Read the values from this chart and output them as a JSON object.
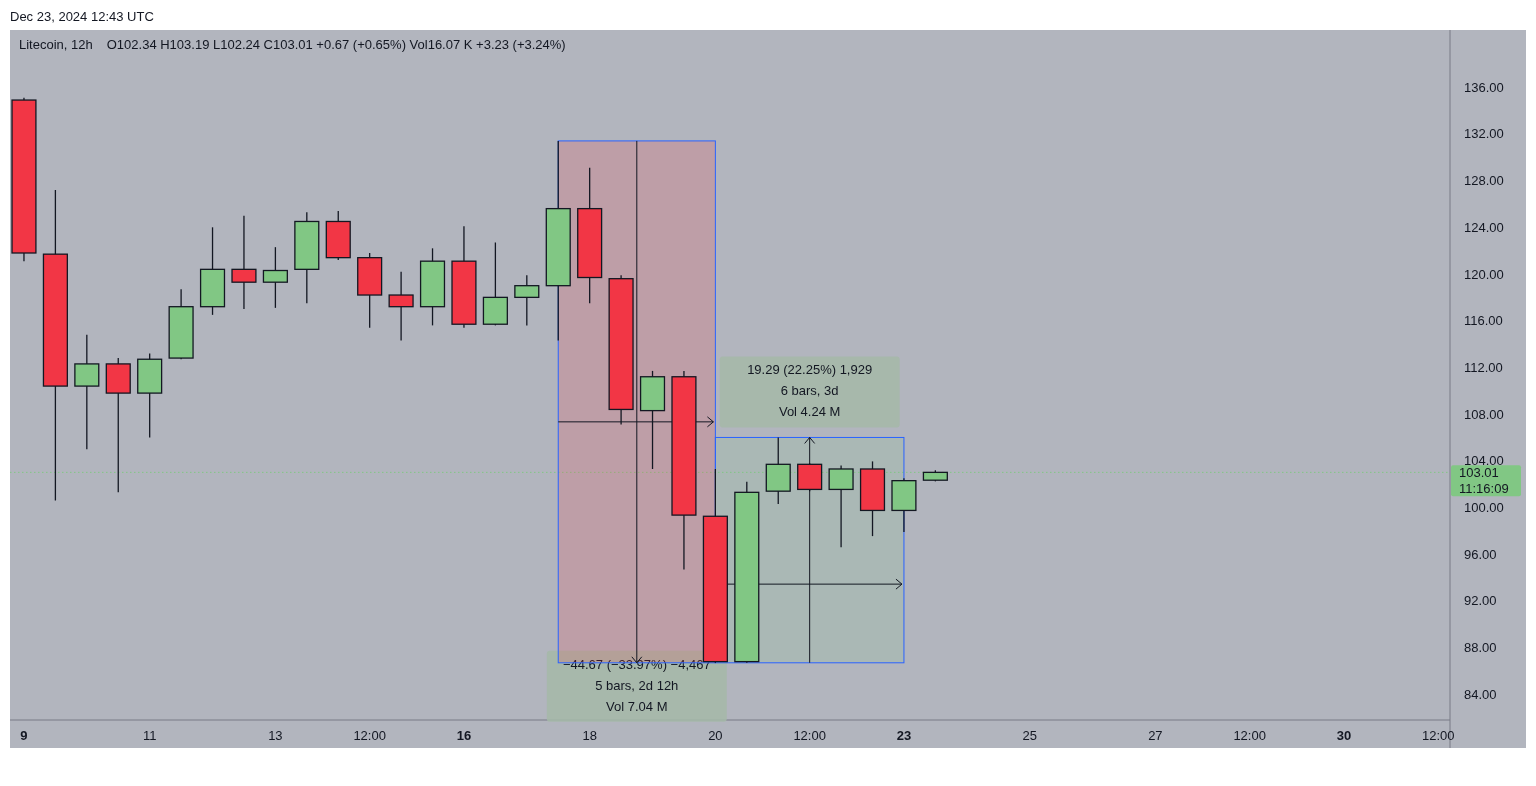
{
  "chart_data": {
    "type": "candlestick",
    "title": "Litecoin, 12h",
    "subtitle": "O102.34  H103.19  L102.24  C103.01  +0.67 (+0.65%)  Vol16.07 K  +3.23 (+3.24%)",
    "x": [
      "2024-12-09T00:00",
      "2024-12-09T12:00",
      "2024-12-10T00:00",
      "2024-12-10T12:00",
      "2024-12-11T00:00",
      "2024-12-11T12:00",
      "2024-12-12T00:00",
      "2024-12-12T12:00",
      "2024-12-13T00:00",
      "2024-12-13T12:00",
      "2024-12-14T00:00",
      "2024-12-14T12:00",
      "2024-12-15T00:00",
      "2024-12-15T12:00",
      "2024-12-16T00:00",
      "2024-12-16T12:00",
      "2024-12-17T00:00",
      "2024-12-17T12:00",
      "2024-12-18T00:00",
      "2024-12-18T12:00",
      "2024-12-19T00:00",
      "2024-12-19T12:00",
      "2024-12-20T00:00",
      "2024-12-20T12:00",
      "2024-12-21T00:00",
      "2024-12-21T12:00",
      "2024-12-22T00:00",
      "2024-12-22T12:00",
      "2024-12-23T00:00",
      "2024-12-23T12:00"
    ],
    "ohlc": [
      [
        134.9,
        135.1,
        121.1,
        121.8
      ],
      [
        121.7,
        127.2,
        100.6,
        110.4
      ],
      [
        110.4,
        114.8,
        105.0,
        112.3
      ],
      [
        112.3,
        112.8,
        101.3,
        109.8
      ],
      [
        109.8,
        113.2,
        106.0,
        112.7
      ],
      [
        112.8,
        118.7,
        112.7,
        117.2
      ],
      [
        117.2,
        124.0,
        116.5,
        120.4
      ],
      [
        120.4,
        125.0,
        117.0,
        119.3
      ],
      [
        119.3,
        122.3,
        117.1,
        120.3
      ],
      [
        120.4,
        125.3,
        117.5,
        124.5
      ],
      [
        124.5,
        125.4,
        121.2,
        121.4
      ],
      [
        121.4,
        121.8,
        115.4,
        118.2
      ],
      [
        118.2,
        120.2,
        114.3,
        117.2
      ],
      [
        117.2,
        122.2,
        115.6,
        121.1
      ],
      [
        121.1,
        124.1,
        115.4,
        115.7
      ],
      [
        115.7,
        122.7,
        115.6,
        118.0
      ],
      [
        118.0,
        119.9,
        115.6,
        119.0
      ],
      [
        119.0,
        131.4,
        114.3,
        125.6
      ],
      [
        125.6,
        129.1,
        117.5,
        119.7
      ],
      [
        119.6,
        119.9,
        107.1,
        108.4
      ],
      [
        108.3,
        111.7,
        103.3,
        111.2
      ],
      [
        111.2,
        111.7,
        94.7,
        99.35
      ],
      [
        99.25,
        103.3,
        86.7,
        86.8
      ],
      [
        86.8,
        102.2,
        86.7,
        101.3
      ],
      [
        101.4,
        106.0,
        100.3,
        103.7
      ],
      [
        103.7,
        103.8,
        101.4,
        101.55
      ],
      [
        101.55,
        103.6,
        96.6,
        103.3
      ],
      [
        103.3,
        103.95,
        97.55,
        99.75
      ],
      [
        99.75,
        102.5,
        97.9,
        102.3
      ],
      [
        102.34,
        103.19,
        102.24,
        103.01
      ]
    ],
    "colors": [
      "#f23645",
      "#f23645",
      "#81c784",
      "#f23645",
      "#81c784",
      "#81c784",
      "#81c784",
      "#f23645",
      "#81c784",
      "#81c784",
      "#f23645",
      "#f23645",
      "#f23645",
      "#81c784",
      "#f23645",
      "#81c784",
      "#81c784",
      "#81c784",
      "#f23645",
      "#f23645",
      "#81c784",
      "#f23645",
      "#f23645",
      "#81c784",
      "#81c784",
      "#f23645",
      "#81c784",
      "#f23645",
      "#81c784",
      "#81c784"
    ],
    "xlim": [
      "2024-12-08T18:40",
      "2024-12-31T16:30"
    ],
    "xticks": [
      {
        "value": "2024-12-09T00:00",
        "label": "9"
      },
      {
        "value": "2024-12-11T00:00",
        "label": "11"
      },
      {
        "value": "2024-12-13T00:00",
        "label": "13"
      },
      {
        "value": "2024-12-14T12:00",
        "label": "12:00"
      },
      {
        "value": "2024-12-16T00:00",
        "label": "16"
      },
      {
        "value": "2024-12-18T00:00",
        "label": "18"
      },
      {
        "value": "2024-12-20T00:00",
        "label": "20"
      },
      {
        "value": "2024-12-21T12:00",
        "label": "12:00"
      },
      {
        "value": "2024-12-23T00:00",
        "label": "23"
      },
      {
        "value": "2024-12-25T00:00",
        "label": "25"
      },
      {
        "value": "2024-12-27T00:00",
        "label": "27"
      },
      {
        "value": "2024-12-28T12:00",
        "label": "12:00"
      },
      {
        "value": "2024-12-30T00:00",
        "label": "30"
      },
      {
        "value": "2024-12-31T12:00",
        "label": "12:00"
      }
    ],
    "ylim": [
      81.8,
      140.9
    ],
    "yticks": [
      {
        "value": 84,
        "label": "84.00"
      },
      {
        "value": 88,
        "label": "88.00"
      },
      {
        "value": 92,
        "label": "92.00"
      },
      {
        "value": 96,
        "label": "96.00"
      },
      {
        "value": 100,
        "label": "100.00"
      },
      {
        "value": 104,
        "label": "104.00"
      },
      {
        "value": 108,
        "label": "108.00"
      },
      {
        "value": 112,
        "label": "112.00"
      },
      {
        "value": 116,
        "label": "116.00"
      },
      {
        "value": 120,
        "label": "120.00"
      },
      {
        "value": 124,
        "label": "124.00"
      },
      {
        "value": 128,
        "label": "128.00"
      },
      {
        "value": 132,
        "label": "132.00"
      },
      {
        "value": 136,
        "label": "136.00"
      }
    ],
    "ref_lines": [
      {
        "axis": "y",
        "value": 103.01,
        "label": "103.01",
        "color": "#81c784",
        "line_style": "dotted"
      }
    ],
    "annotations": [
      "Dec 23, 2024 12:43 UTC",
      "11:16:09",
      "−44.67 (−33.97%) −4,467\n5 bars, 2d 12h\nVol 7.04 M",
      "19.29 (22.25%) 1,929\n6 bars, 3d\nVol 4.24 M"
    ]
  }
}
